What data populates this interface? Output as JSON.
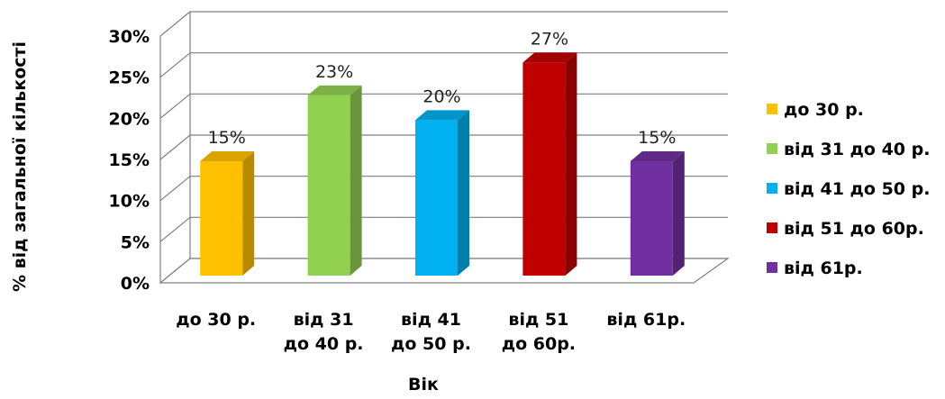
{
  "chart_data": {
    "type": "bar",
    "categories": [
      [
        "до 30 р."
      ],
      [
        "від 31",
        "до 40 р."
      ],
      [
        "від 41",
        "до 50 р."
      ],
      [
        "від 51",
        "до 60р."
      ],
      [
        "від 61р."
      ]
    ],
    "values": [
      15,
      23,
      20,
      27,
      15
    ],
    "data_labels": [
      "15%",
      "23%",
      "20%",
      "27%",
      "15%"
    ],
    "colors": [
      "#FFC000",
      "#92D050",
      "#00B0F0",
      "#C00000",
      "#7030A0"
    ],
    "xlabel": "Вік",
    "ylabel": "% від загальної кількості",
    "ylim": [
      0,
      30
    ],
    "yticks": [
      "0%",
      "5%",
      "10%",
      "15%",
      "20%",
      "25%",
      "30%"
    ],
    "legend": [
      "до 30 р.",
      "від 31 до 40 р.",
      "від 41 до 50 р.",
      "від 51 до 60р.",
      "від 61р."
    ],
    "legend_position": "right",
    "grid": true,
    "style": "3d-column"
  }
}
